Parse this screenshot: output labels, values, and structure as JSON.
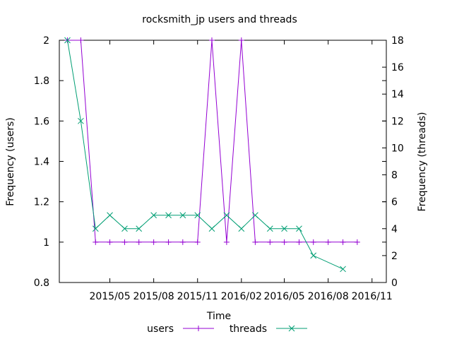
{
  "chart_data": {
    "type": "line",
    "title": "rocksmith_jp users and threads",
    "xlabel": "Time",
    "ylabel": "Frequency (users)",
    "y2label": "Frequency (threads)",
    "grid": false,
    "legend_placement": "bottom",
    "x_ticks": [
      "2015/05",
      "2015/08",
      "2015/11",
      "2016/02",
      "2016/05",
      "2016/08",
      "2016/11"
    ],
    "xlim": [
      "2015-01-15",
      "2016-12-01"
    ],
    "ylim": [
      0.8,
      2
    ],
    "y_ticks": [
      0.8,
      1,
      1.2,
      1.4,
      1.6,
      1.8,
      2
    ],
    "y2lim": [
      0,
      18
    ],
    "y2_ticks": [
      0,
      2,
      4,
      6,
      8,
      10,
      12,
      14,
      16,
      18
    ],
    "series": [
      {
        "name": "users",
        "axis": "y",
        "color": "#9400d3",
        "marker": "+",
        "points": [
          [
            "2015-02-01",
            2
          ],
          [
            "2015-03-01",
            2
          ],
          [
            "2015-04-01",
            1
          ],
          [
            "2015-05-01",
            1
          ],
          [
            "2015-06-01",
            1
          ],
          [
            "2015-07-01",
            1
          ],
          [
            "2015-08-01",
            1
          ],
          [
            "2015-09-01",
            1
          ],
          [
            "2015-10-01",
            1
          ],
          [
            "2015-11-01",
            1
          ],
          [
            "2015-12-01",
            2
          ],
          [
            "2016-01-01",
            1
          ],
          [
            "2016-02-01",
            2
          ],
          [
            "2016-03-01",
            1
          ],
          [
            "2016-04-01",
            1
          ],
          [
            "2016-05-01",
            1
          ],
          [
            "2016-06-01",
            1
          ],
          [
            "2016-07-01",
            1
          ],
          [
            "2016-08-01",
            1
          ],
          [
            "2016-09-01",
            1
          ],
          [
            "2016-10-01",
            1
          ]
        ]
      },
      {
        "name": "threads",
        "axis": "y2",
        "color": "#009e73",
        "marker": "x",
        "points": [
          [
            "2015-02-01",
            18
          ],
          [
            "2015-03-01",
            12
          ],
          [
            "2015-04-01",
            4
          ],
          [
            "2015-05-01",
            5
          ],
          [
            "2015-06-01",
            4
          ],
          [
            "2015-07-01",
            4
          ],
          [
            "2015-08-01",
            5
          ],
          [
            "2015-09-01",
            5
          ],
          [
            "2015-10-01",
            5
          ],
          [
            "2015-11-01",
            5
          ],
          [
            "2015-12-01",
            4
          ],
          [
            "2016-01-01",
            5
          ],
          [
            "2016-02-01",
            4
          ],
          [
            "2016-03-01",
            5
          ],
          [
            "2016-04-01",
            4
          ],
          [
            "2016-05-01",
            4
          ],
          [
            "2016-06-01",
            4
          ],
          [
            "2016-07-01",
            2
          ],
          [
            "2016-09-01",
            1
          ]
        ]
      }
    ]
  }
}
